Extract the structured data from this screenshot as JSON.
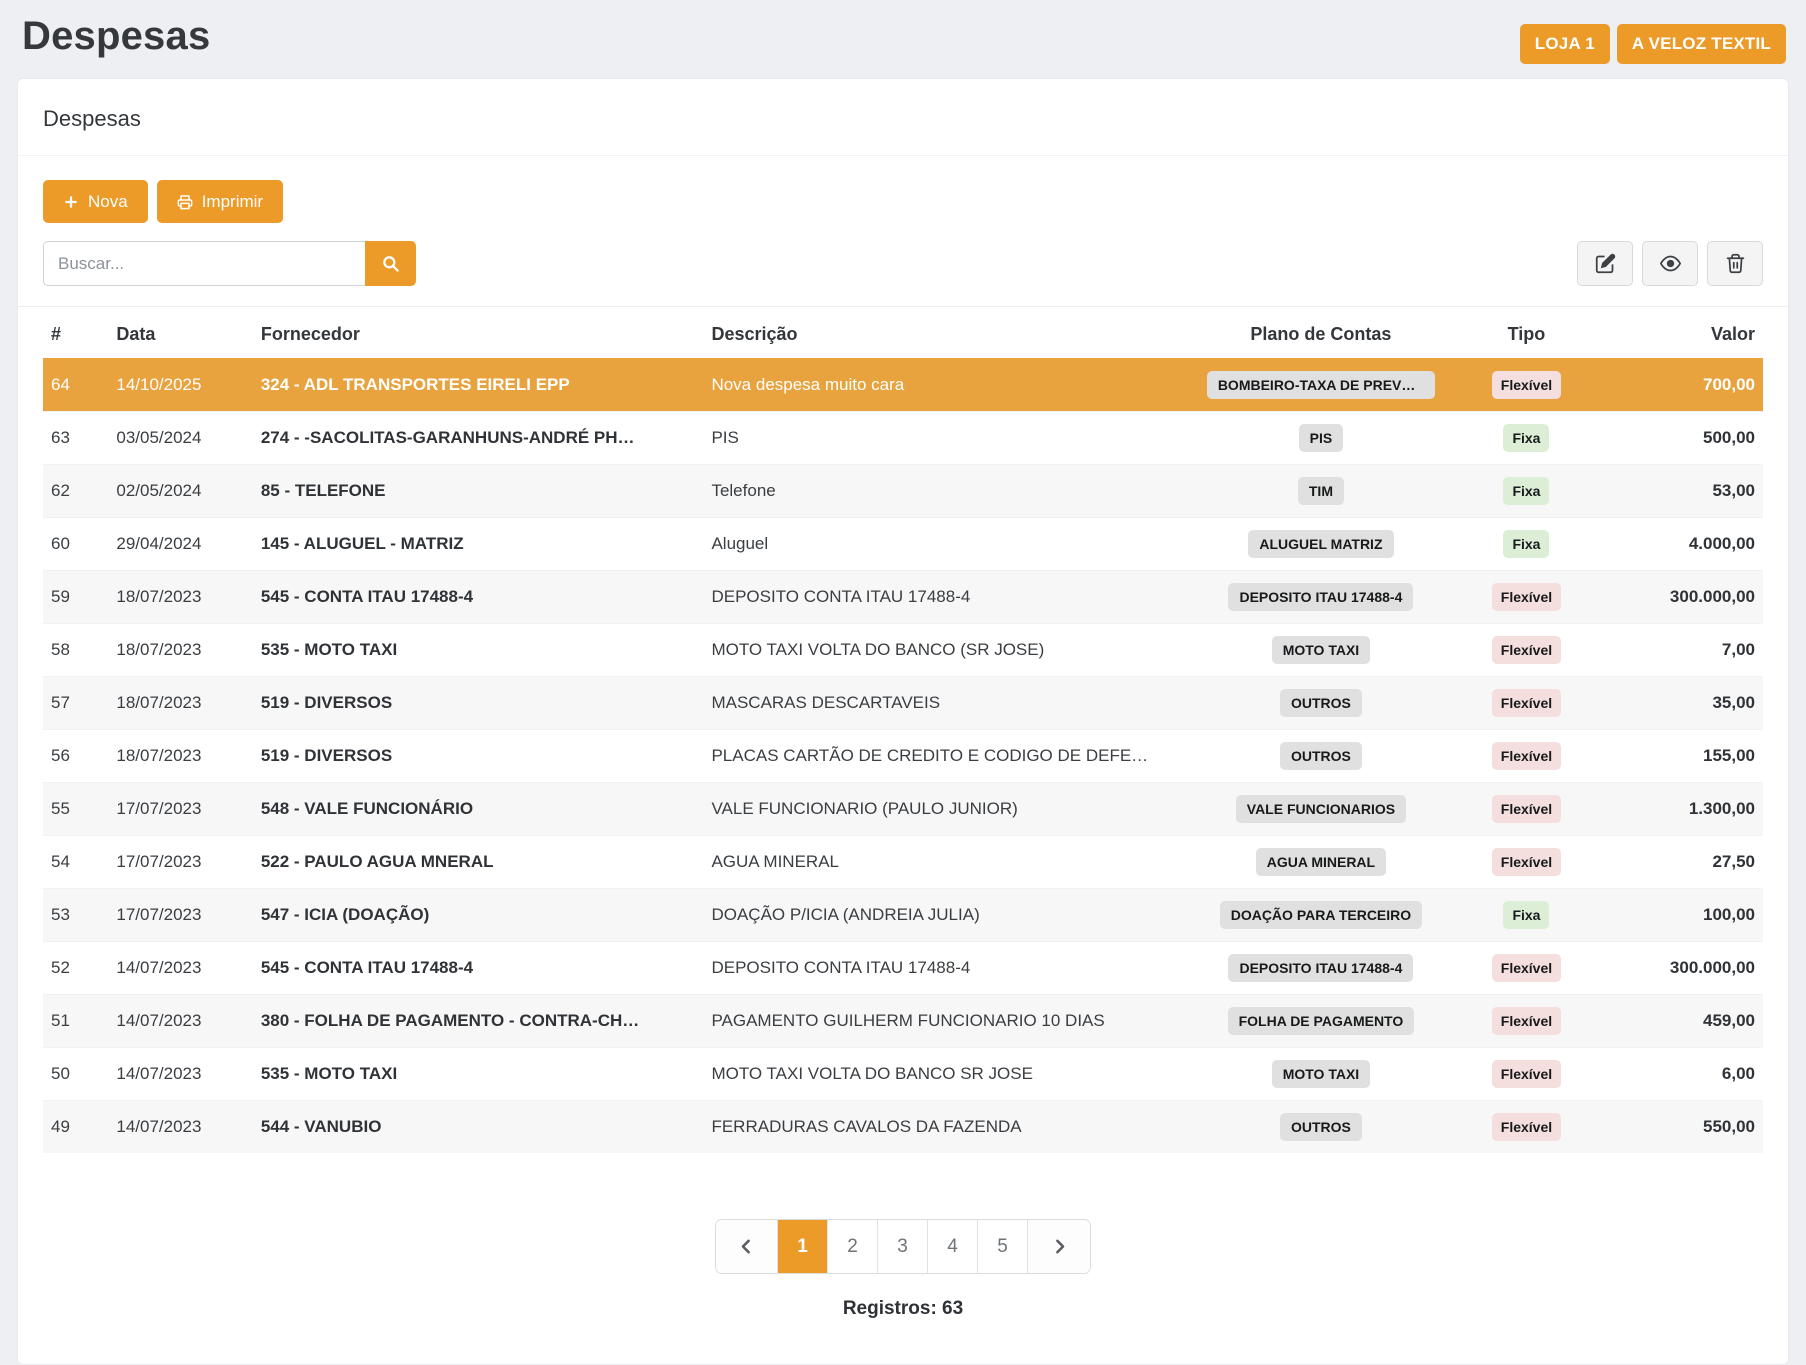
{
  "page": {
    "title": "Despesas"
  },
  "topbar": {
    "store_button": "LOJA 1",
    "company_button": "A VELOZ TEXTIL"
  },
  "card": {
    "title": "Despesas"
  },
  "toolbar": {
    "new_button_label": "Nova",
    "print_button_label": "Imprimir"
  },
  "search": {
    "placeholder": "Buscar...",
    "value": ""
  },
  "icons": {
    "new_button": "plus-icon",
    "print_button": "printer-icon",
    "search_button": "search-icon",
    "edit_button": "pencil-square-icon",
    "view_button": "eye-icon",
    "delete_button": "trash-icon",
    "pagination_prev": "chevron-left-icon",
    "pagination_next": "chevron-right-icon"
  },
  "table": {
    "columns": [
      "#",
      "Data",
      "Fornecedor",
      "Descrição",
      "Plano de Contas",
      "Tipo",
      "Valor"
    ],
    "rows": [
      {
        "id": "64",
        "date": "14/10/2025",
        "supplier": "324 - ADL TRANSPORTES EIRELI EPP",
        "description": "Nova despesa muito cara",
        "plan": "BOMBEIRO-TAXA DE PREVEN ...",
        "type": {
          "label": "Flexível",
          "style": "flexivel"
        },
        "value": "700,00",
        "selected": true
      },
      {
        "id": "63",
        "date": "03/05/2024",
        "supplier": "274 - -SACOLITAS-GARANHUNS-ANDRÉ PH…",
        "description": "PIS",
        "plan": "PIS",
        "type": {
          "label": "Fixa",
          "style": "fixa"
        },
        "value": "500,00"
      },
      {
        "id": "62",
        "date": "02/05/2024",
        "supplier": "85 - TELEFONE",
        "description": "Telefone",
        "plan": "TIM",
        "type": {
          "label": "Fixa",
          "style": "fixa"
        },
        "value": "53,00"
      },
      {
        "id": "60",
        "date": "29/04/2024",
        "supplier": "145 - ALUGUEL - MATRIZ",
        "description": "Aluguel",
        "plan": "ALUGUEL MATRIZ",
        "type": {
          "label": "Fixa",
          "style": "fixa"
        },
        "value": "4.000,00"
      },
      {
        "id": "59",
        "date": "18/07/2023",
        "supplier": "545 - CONTA ITAU 17488-4",
        "description": "DEPOSITO CONTA ITAU 17488-4",
        "plan": "DEPOSITO ITAU 17488-4",
        "type": {
          "label": "Flexível",
          "style": "flexivel"
        },
        "value": "300.000,00"
      },
      {
        "id": "58",
        "date": "18/07/2023",
        "supplier": "535 - MOTO TAXI",
        "description": "MOTO TAXI VOLTA DO BANCO (SR JOSE)",
        "plan": "MOTO TAXI",
        "type": {
          "label": "Flexível",
          "style": "flexivel"
        },
        "value": "7,00"
      },
      {
        "id": "57",
        "date": "18/07/2023",
        "supplier": "519 - DIVERSOS",
        "description": "MASCARAS DESCARTAVEIS",
        "plan": "OUTROS",
        "type": {
          "label": "Flexível",
          "style": "flexivel"
        },
        "value": "35,00"
      },
      {
        "id": "56",
        "date": "18/07/2023",
        "supplier": "519 - DIVERSOS",
        "description": "PLACAS CARTÃO DE CREDITO E CODIGO DE DEFE…",
        "plan": "OUTROS",
        "type": {
          "label": "Flexível",
          "style": "flexivel"
        },
        "value": "155,00"
      },
      {
        "id": "55",
        "date": "17/07/2023",
        "supplier": "548 - VALE FUNCIONÁRIO",
        "description": "VALE FUNCIONARIO (PAULO JUNIOR)",
        "plan": "VALE FUNCIONARIOS",
        "type": {
          "label": "Flexível",
          "style": "flexivel"
        },
        "value": "1.300,00"
      },
      {
        "id": "54",
        "date": "17/07/2023",
        "supplier": "522 - PAULO AGUA MNERAL",
        "description": "AGUA MINERAL",
        "plan": "AGUA MINERAL",
        "type": {
          "label": "Flexível",
          "style": "flexivel"
        },
        "value": "27,50"
      },
      {
        "id": "53",
        "date": "17/07/2023",
        "supplier": "547 - ICIA (DOAÇÃO)",
        "description": "DOAÇÃO P/ICIA (ANDREIA JULIA)",
        "plan": "DOAÇÃO PARA TERCEIRO",
        "type": {
          "label": "Fixa",
          "style": "fixa"
        },
        "value": "100,00"
      },
      {
        "id": "52",
        "date": "14/07/2023",
        "supplier": "545 - CONTA ITAU 17488-4",
        "description": "DEPOSITO CONTA ITAU 17488-4",
        "plan": "DEPOSITO ITAU 17488-4",
        "type": {
          "label": "Flexível",
          "style": "flexivel"
        },
        "value": "300.000,00"
      },
      {
        "id": "51",
        "date": "14/07/2023",
        "supplier": "380 - FOLHA DE PAGAMENTO - CONTRA-CH…",
        "description": "PAGAMENTO GUILHERM FUNCIONARIO 10 DIAS",
        "plan": "FOLHA DE PAGAMENTO",
        "type": {
          "label": "Flexível",
          "style": "flexivel"
        },
        "value": "459,00"
      },
      {
        "id": "50",
        "date": "14/07/2023",
        "supplier": "535 - MOTO TAXI",
        "description": "MOTO TAXI VOLTA DO BANCO SR JOSE",
        "plan": "MOTO TAXI",
        "type": {
          "label": "Flexível",
          "style": "flexivel"
        },
        "value": "6,00"
      },
      {
        "id": "49",
        "date": "14/07/2023",
        "supplier": "544 - VANUBIO",
        "description": "FERRADURAS CAVALOS DA FAZENDA",
        "plan": "OUTROS",
        "type": {
          "label": "Flexível",
          "style": "flexivel"
        },
        "value": "550,00"
      }
    ]
  },
  "pagination": {
    "pages": [
      "1",
      "2",
      "3",
      "4",
      "5"
    ],
    "active_page": "1"
  },
  "footer": {
    "records_label": "Registros: 63"
  },
  "colors": {
    "accent_orange": "#ec9a28",
    "selected_row": "#e8a33e",
    "badge_gray_bg": "#e0e0e0",
    "badge_fixa_bg": "#dcefd6",
    "badge_flexivel_bg": "#f4dede"
  }
}
